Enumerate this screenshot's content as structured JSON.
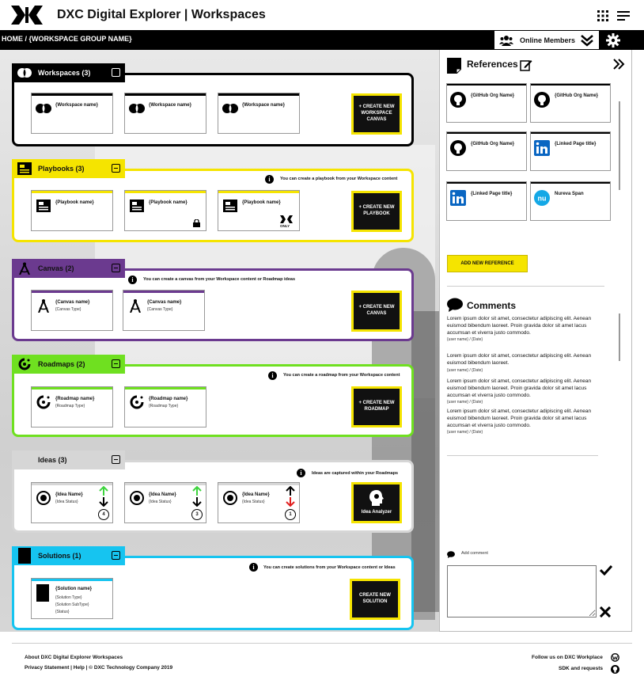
{
  "header": {
    "app_title": "DXC Digital Explorer | Workspaces",
    "breadcrumb": "HOME / {WORKSPACE GROUP NAME}",
    "online_members": "Online Members"
  },
  "colors": {
    "workspaces": "#000000",
    "playbooks": "#f5e400",
    "canvas": "#6b3a8f",
    "roadmaps": "#6fe020",
    "ideas": "#d6d6d6",
    "solutions": "#16c4f0"
  },
  "workspaces": {
    "title": "Workspaces (3)",
    "cards": [
      "{Workspace name}",
      "{Workspace name}",
      "{Workspace name}"
    ],
    "create": "+ CREATE NEW WORKSPACE CANVAS"
  },
  "playbooks": {
    "title": "Playbooks (3)",
    "hint": "You can create a playbook from your Workspace content",
    "cards": [
      "{Playbook name}",
      "{Playbook name}",
      "{Playbook name}"
    ],
    "only_badge": "ONLY",
    "create": "+ CREATE NEW PLAYBOOK"
  },
  "canvas": {
    "title": "Canvas (2)",
    "hint": "You can create a canvas from your Workspace content or Roadmap ideas",
    "cards": [
      {
        "name": "{Canvas name}",
        "type": "{Canvas Type}"
      },
      {
        "name": "{Canvas name}",
        "type": "{Canvas Type}"
      }
    ],
    "create": "+ CREATE NEW CANVAS"
  },
  "roadmaps": {
    "title": "Roadmaps (2)",
    "hint": "You can create a roadmap from your Workspace content",
    "cards": [
      {
        "name": "{Roadmap name}",
        "type": "{Roadmap Type}"
      },
      {
        "name": "{Roadmap name}",
        "type": "{Roadmap Type}"
      }
    ],
    "create": "+ CREATE NEW ROADMAP"
  },
  "ideas": {
    "title": "Ideas (3)",
    "hint": "Ideas are captured within your Roadmaps",
    "cards": [
      {
        "name": "{Idea Name}",
        "status": "{Idea Status}",
        "count": "4"
      },
      {
        "name": "{Idea Name}",
        "status": "{Idea Status}",
        "count": "3"
      },
      {
        "name": "{Idea Name}",
        "status": "{Idea Status}",
        "count": "1"
      }
    ],
    "analyzer": "Idea Analyzer"
  },
  "solutions": {
    "title": "Solutions (1)",
    "hint": "You can create  solutions from your Workspace content or Ideas",
    "card": {
      "name": "{Solution name}",
      "type": "{Solution Type}",
      "subtype": "{Solution SubType}",
      "status": "{Status}"
    },
    "create": "CREATE NEW SOLUTION"
  },
  "references": {
    "title": "References",
    "items": [
      {
        "label": "{GitHub Org Name}",
        "icon": "github-icon"
      },
      {
        "label": "{GitHub Org Name}",
        "icon": "github-icon"
      },
      {
        "label": "{GitHub Org Name}",
        "icon": "github-icon"
      },
      {
        "label": "{Linked Page title}",
        "icon": "linkedin-icon"
      },
      {
        "label": "{Linked Page title}",
        "icon": "linkedin-icon"
      },
      {
        "label": "Nureva Span",
        "icon": "nureva-icon"
      }
    ],
    "add": "ADD NEW REFERENCE"
  },
  "comments": {
    "title": "Comments",
    "items": [
      {
        "text": "Lorem ipsum dolor sit amet, consectetur adipiscing elit. Aenean euismod bibendum laoreet. Proin gravida dolor sit amet lacus accumsan et viverra justo commodo.",
        "meta": "{user name} / {Date}"
      },
      {
        "text": "Lorem ipsum dolor sit amet, consectetur adipiscing elit. Aenean euismod bibendum laoreet.",
        "meta": "{user name} / {Date}"
      },
      {
        "text": "Lorem ipsum dolor sit amet, consectetur adipiscing elit. Aenean euismod bibendum laoreet. Proin gravida dolor sit amet lacus accumsan et viverra justo commodo.",
        "meta": "{user name} / {Date}"
      },
      {
        "text": "Lorem ipsum dolor sit amet, consectetur adipiscing elit. Aenean euismod bibendum laoreet. Proin gravida dolor sit amet lacus accumsan et viverra justo commodo.",
        "meta": "{user name} / {Date}"
      }
    ],
    "add_label": "Add comment"
  },
  "footer": {
    "about": "About DXC Digital Explorer Workspaces",
    "links": "Privacy Statement   |  Help  |  © DXC Technology Company 2019",
    "follow": "Follow us on  DXC Workplace",
    "sdk": "SDK and requests"
  }
}
